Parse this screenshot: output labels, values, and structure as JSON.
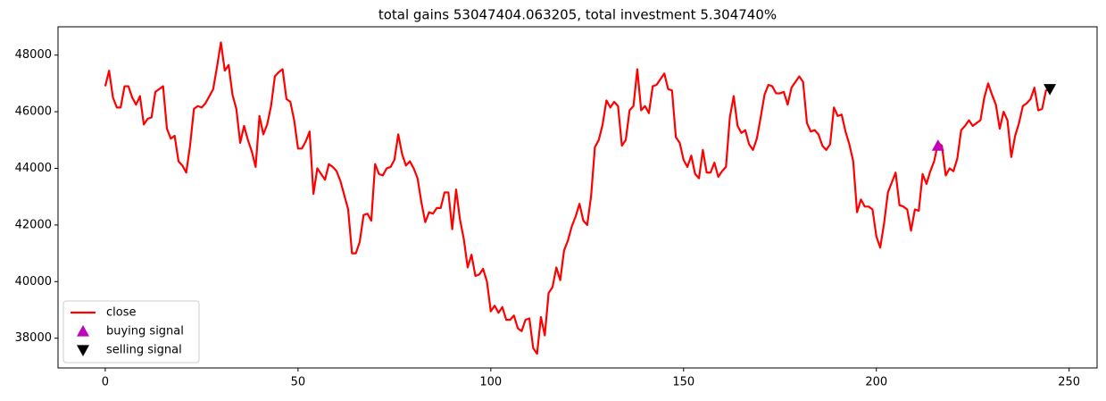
{
  "chart_data": {
    "type": "line",
    "title": "total gains 53047404.063205, total investment 5.304740%",
    "xlim": [
      -12.25,
      257.25
    ],
    "xticks": [
      0,
      50,
      100,
      150,
      200,
      250
    ],
    "ylim": [
      36950,
      49000
    ],
    "yticks": [
      38000,
      40000,
      42000,
      44000,
      46000,
      48000
    ],
    "legend": "lower left",
    "series": [
      {
        "name": "close",
        "color": "#ff0000",
        "marker": "none",
        "x": [
          0,
          1,
          2,
          3,
          4,
          5,
          6,
          7,
          8,
          9,
          10,
          11,
          12,
          13,
          14,
          15,
          16,
          17,
          18,
          19,
          20,
          21,
          22,
          23,
          24,
          25,
          26,
          27,
          28,
          29,
          30,
          31,
          32,
          33,
          34,
          35,
          36,
          37,
          38,
          39,
          40,
          41,
          42,
          43,
          44,
          45,
          46,
          47,
          48,
          49,
          50,
          51,
          52,
          53,
          54,
          55,
          56,
          57,
          58,
          59,
          60,
          61,
          62,
          63,
          64,
          65,
          66,
          67,
          68,
          69,
          70,
          71,
          72,
          73,
          74,
          75,
          76,
          77,
          78,
          79,
          80,
          81,
          82,
          83,
          84,
          85,
          86,
          87,
          88,
          89,
          90,
          91,
          92,
          93,
          94,
          95,
          96,
          97,
          98,
          99,
          100,
          101,
          102,
          103,
          104,
          105,
          106,
          107,
          108,
          109,
          110,
          111,
          112,
          113,
          114,
          115,
          116,
          117,
          118,
          119,
          120,
          121,
          122,
          123,
          124,
          125,
          126,
          127,
          128,
          129,
          130,
          131,
          132,
          133,
          134,
          135,
          136,
          137,
          138,
          139,
          140,
          141,
          142,
          143,
          144,
          145,
          146,
          147,
          148,
          149,
          150,
          151,
          152,
          153,
          154,
          155,
          156,
          157,
          158,
          159,
          160,
          161,
          162,
          163,
          164,
          165,
          166,
          167,
          168,
          169,
          170,
          171,
          172,
          173,
          174,
          175,
          176,
          177,
          178,
          179,
          180,
          181,
          182,
          183,
          184,
          185,
          186,
          187,
          188,
          189,
          190,
          191,
          192,
          193,
          194,
          195,
          196,
          197,
          198,
          199,
          200,
          201,
          202,
          203,
          204,
          205,
          206,
          207,
          208,
          209,
          210,
          211,
          212,
          213,
          214,
          215,
          216,
          217,
          218,
          219,
          220,
          221,
          222,
          223,
          224,
          225,
          226,
          227,
          228,
          229,
          230,
          231,
          232,
          233,
          234,
          235,
          236,
          237,
          238,
          239,
          240,
          241,
          242,
          243,
          244,
          245
        ],
        "values": [
          46900,
          47450,
          46500,
          46150,
          46150,
          46900,
          46900,
          46500,
          46250,
          46550,
          45550,
          45750,
          45800,
          46700,
          46800,
          46900,
          45400,
          45050,
          45150,
          44250,
          44100,
          43850,
          44800,
          46100,
          46200,
          46150,
          46300,
          46550,
          46800,
          47600,
          48450,
          47450,
          47650,
          46600,
          46100,
          44900,
          45500,
          45000,
          44600,
          44050,
          45850,
          45200,
          45550,
          46200,
          47250,
          47400,
          47500,
          46450,
          46350,
          45700,
          44700,
          44700,
          44950,
          45300,
          43100,
          44000,
          43800,
          43600,
          44150,
          44050,
          43900,
          43550,
          43050,
          42550,
          41000,
          41000,
          41400,
          42350,
          42400,
          42150,
          44150,
          43800,
          43750,
          44000,
          44050,
          44300,
          45200,
          44500,
          44100,
          44250,
          44000,
          43650,
          42800,
          42100,
          42450,
          42400,
          42600,
          42600,
          43150,
          43150,
          41850,
          43250,
          42200,
          41500,
          40500,
          40950,
          40200,
          40250,
          40450,
          40000,
          38950,
          39150,
          38900,
          39100,
          38650,
          38650,
          38800,
          38350,
          38250,
          38650,
          38700,
          37650,
          37450,
          38750,
          38100,
          39600,
          39800,
          40500,
          40050,
          41100,
          41450,
          41950,
          42300,
          42750,
          42150,
          42000,
          43000,
          44750,
          45000,
          45550,
          46400,
          46150,
          46350,
          46200,
          44800,
          45000,
          46050,
          46200,
          47500,
          46050,
          46200,
          45950,
          46900,
          46950,
          47150,
          47350,
          46800,
          46750,
          45100,
          44900,
          44300,
          44050,
          44450,
          43800,
          43650,
          44650,
          43850,
          43850,
          44200,
          43700,
          43900,
          44050,
          45800,
          46550,
          45500,
          45250,
          45350,
          44850,
          44650,
          45050,
          45800,
          46600,
          46950,
          46900,
          46650,
          46650,
          46700,
          46250,
          46850,
          47050,
          47250,
          47050,
          45600,
          45300,
          45350,
          45200,
          44800,
          44650,
          44850,
          46150,
          45850,
          45900,
          45300,
          44850,
          44250,
          42450,
          42900,
          42650,
          42650,
          42550,
          41600,
          41200,
          42050,
          43150,
          43500,
          43850,
          42700,
          42650,
          42550,
          41800,
          42550,
          42500,
          43800,
          43450,
          43900,
          44250,
          44900,
          44800,
          43750,
          44000,
          43900,
          44350,
          45350,
          45500,
          45700,
          45500,
          45600,
          45700,
          46500,
          47000,
          46600,
          46250,
          45400,
          46000,
          45700,
          44400,
          45150,
          45600,
          46200,
          46300,
          46450,
          46850,
          46050,
          46100,
          46750,
          46800
        ]
      },
      {
        "name": "buying signal",
        "color": "#bf00bf",
        "marker": "^",
        "x": [
          216
        ],
        "values": [
          44800
        ]
      },
      {
        "name": "selling signal",
        "color": "#000000",
        "marker": "v",
        "x": [
          245
        ],
        "values": [
          46800
        ]
      }
    ]
  }
}
